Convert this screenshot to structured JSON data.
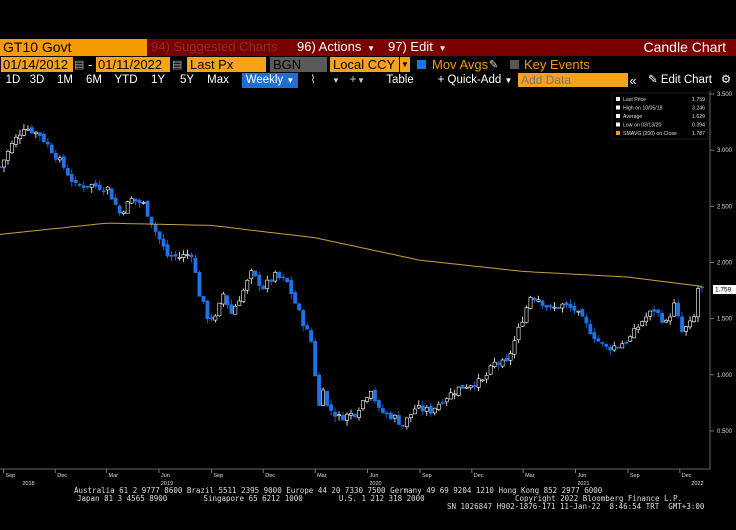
{
  "header": {
    "security": "GT10 Govt",
    "suggested_charts": "94) Suggested Charts",
    "actions": "96) Actions",
    "edit": "97) Edit",
    "chart_title": "Candle Chart"
  },
  "controls": {
    "start_date": "01/14/2012",
    "end_date": "01/11/2022",
    "date_separator": "-",
    "field": "Last Px",
    "source": "BGN",
    "currency": "Local CCY",
    "mov_avgs": "Mov Avgs",
    "key_events": "Key Events"
  },
  "toolbar": {
    "periods": [
      "1D",
      "3D",
      "1M",
      "6M",
      "YTD",
      "1Y",
      "5Y",
      "Max"
    ],
    "frequency": "Weekly",
    "table": "Table",
    "quick_add": "Quick-Add",
    "add_data_placeholder": "Add Data",
    "edit_chart": "Edit Chart"
  },
  "legend": {
    "rows": [
      {
        "label": "Last Price",
        "value": "1.759"
      },
      {
        "label": "High on 10/05/18",
        "value": "3.246"
      },
      {
        "label": "Average",
        "value": "1.629"
      },
      {
        "label": "Low on 03/13/20",
        "value": "0.394"
      },
      {
        "label": "SMAVG (200) on Close",
        "value": "1.787"
      }
    ]
  },
  "last_price_tag": "1.759",
  "footer": {
    "line1": "Australia 61 2 9777 8600 Brazil 5511 2395 9000 Europe 44 20 7330 7500 Germany 49 69 9204 1210 Hong Kong 852 2977 6000",
    "line2": "Japan 81 3 4565 8900        Singapore 65 6212 1000        U.S. 1 212 318 2000                    Copyright 2022 Bloomberg Finance L.P.",
    "line3": "SN 1026847 H902-1876-171 11-Jan-22  8:46:54 TRT  GMT+3:00"
  },
  "colors": {
    "up": "#ffffff",
    "down": "#1e73e8",
    "sma": "#c8a040",
    "accent": "#f59b00",
    "title_bar": "#7a0000"
  },
  "chart_data": {
    "type": "candlestick",
    "frequency": "weekly",
    "ylim": [
      0.25,
      3.5
    ],
    "yticks": [
      "3.500",
      "3.000",
      "2.500",
      "2.000",
      "1.500",
      "1.000",
      "0.500"
    ],
    "x_range": [
      "2018-08-26",
      "2022-01-16"
    ],
    "xticks": [
      {
        "date": "2018-09-01",
        "label": "Sep"
      },
      {
        "date": "2018-12-01",
        "label": "Dec"
      },
      {
        "date": "2019-03-01",
        "label": "Mar"
      },
      {
        "date": "2019-06-01",
        "label": "Jun"
      },
      {
        "date": "2019-09-01",
        "label": "Sep"
      },
      {
        "date": "2019-12-01",
        "label": "Dec"
      },
      {
        "date": "2020-03-01",
        "label": "Mar"
      },
      {
        "date": "2020-06-01",
        "label": "Jun"
      },
      {
        "date": "2020-09-01",
        "label": "Sep"
      },
      {
        "date": "2020-12-01",
        "label": "Dec"
      },
      {
        "date": "2021-03-01",
        "label": "Mar"
      },
      {
        "date": "2021-06-01",
        "label": "Jun"
      },
      {
        "date": "2021-09-01",
        "label": "Sep"
      },
      {
        "date": "2021-12-01",
        "label": "Dec"
      }
    ],
    "year_labels": [
      {
        "date": "2018-10-15",
        "label": "2018"
      },
      {
        "date": "2019-06-15",
        "label": "2019"
      },
      {
        "date": "2020-06-15",
        "label": "2020"
      },
      {
        "date": "2021-06-15",
        "label": "2021"
      },
      {
        "date": "2022-01-01",
        "label": "2022"
      }
    ],
    "close_anchors": [
      [
        "2018-08-26",
        2.85
      ],
      [
        "2018-09-16",
        3.05
      ],
      [
        "2018-10-07",
        3.21
      ],
      [
        "2018-11-04",
        3.14
      ],
      [
        "2018-11-25",
        3.0
      ],
      [
        "2018-12-16",
        2.85
      ],
      [
        "2019-01-06",
        2.68
      ],
      [
        "2019-02-03",
        2.69
      ],
      [
        "2019-03-03",
        2.66
      ],
      [
        "2019-03-24",
        2.44
      ],
      [
        "2019-04-14",
        2.56
      ],
      [
        "2019-05-05",
        2.52
      ],
      [
        "2019-05-26",
        2.28
      ],
      [
        "2019-06-16",
        2.06
      ],
      [
        "2019-07-07",
        2.05
      ],
      [
        "2019-07-28",
        2.08
      ],
      [
        "2019-08-11",
        1.72
      ],
      [
        "2019-08-25",
        1.52
      ],
      [
        "2019-09-08",
        1.5
      ],
      [
        "2019-09-22",
        1.72
      ],
      [
        "2019-10-06",
        1.55
      ],
      [
        "2019-10-27",
        1.75
      ],
      [
        "2019-11-10",
        1.9
      ],
      [
        "2019-12-01",
        1.78
      ],
      [
        "2019-12-22",
        1.88
      ],
      [
        "2020-01-12",
        1.82
      ],
      [
        "2020-02-02",
        1.55
      ],
      [
        "2020-02-23",
        1.3
      ],
      [
        "2020-03-08",
        0.72
      ],
      [
        "2020-03-15",
        0.9
      ],
      [
        "2020-03-22",
        0.72
      ],
      [
        "2020-04-12",
        0.62
      ],
      [
        "2020-05-10",
        0.66
      ],
      [
        "2020-06-07",
        0.88
      ],
      [
        "2020-06-21",
        0.68
      ],
      [
        "2020-07-19",
        0.62
      ],
      [
        "2020-08-02",
        0.55
      ],
      [
        "2020-08-23",
        0.7
      ],
      [
        "2020-09-20",
        0.68
      ],
      [
        "2020-10-11",
        0.78
      ],
      [
        "2020-11-08",
        0.88
      ],
      [
        "2020-11-29",
        0.92
      ],
      [
        "2020-12-20",
        0.94
      ],
      [
        "2021-01-10",
        1.1
      ],
      [
        "2021-01-31",
        1.1
      ],
      [
        "2021-02-21",
        1.4
      ],
      [
        "2021-03-14",
        1.7
      ],
      [
        "2021-03-28",
        1.68
      ],
      [
        "2021-04-18",
        1.58
      ],
      [
        "2021-05-09",
        1.62
      ],
      [
        "2021-05-30",
        1.58
      ],
      [
        "2021-06-20",
        1.44
      ],
      [
        "2021-07-11",
        1.3
      ],
      [
        "2021-07-25",
        1.24
      ],
      [
        "2021-08-15",
        1.26
      ],
      [
        "2021-09-05",
        1.33
      ],
      [
        "2021-09-26",
        1.48
      ],
      [
        "2021-10-17",
        1.58
      ],
      [
        "2021-11-07",
        1.46
      ],
      [
        "2021-11-21",
        1.62
      ],
      [
        "2021-12-05",
        1.38
      ],
      [
        "2021-12-19",
        1.45
      ],
      [
        "2021-12-26",
        1.51
      ],
      [
        "2022-01-02",
        1.77
      ],
      [
        "2022-01-09",
        1.76
      ]
    ],
    "sma200_anchors": [
      [
        "2018-08-26",
        2.25
      ],
      [
        "2019-03-01",
        2.35
      ],
      [
        "2019-09-01",
        2.33
      ],
      [
        "2020-03-01",
        2.22
      ],
      [
        "2020-09-01",
        2.02
      ],
      [
        "2021-03-01",
        1.92
      ],
      [
        "2021-09-01",
        1.87
      ],
      [
        "2022-01-09",
        1.787
      ]
    ]
  }
}
